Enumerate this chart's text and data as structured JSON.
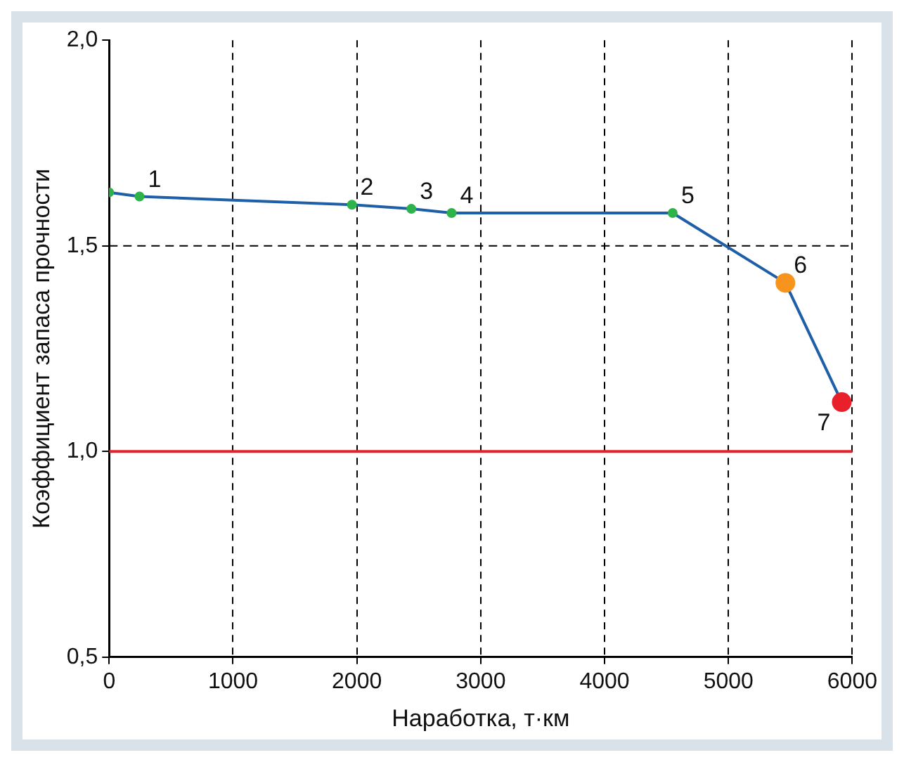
{
  "chart_data": {
    "type": "line",
    "xlabel": "Наработка, т·км",
    "ylabel": "Коэффициент запаса прочности",
    "x": [
      0,
      245,
      1960,
      2440,
      2765,
      4550,
      5460,
      5915
    ],
    "series": [
      {
        "color": "#1f5fa8",
        "values": [
          1.63,
          1.62,
          1.6,
          1.59,
          1.58,
          1.58,
          1.41,
          1.12
        ],
        "colors": [
          "#2db34a",
          "#2db34a",
          "#2db34a",
          "#2db34a",
          "#2db34a",
          "#2db34a",
          "#f7941d",
          "#e8202a"
        ]
      }
    ],
    "xlim": [
      0,
      6000
    ],
    "xticks": [
      0,
      1000,
      2000,
      3000,
      4000,
      5000,
      6000
    ],
    "ylim": [
      0.5,
      2
    ],
    "yticks": [
      {
        "value": 0.5,
        "label": "0,5"
      },
      {
        "value": 1,
        "label": "1,0"
      },
      {
        "value": 1.5,
        "label": "1,5"
      },
      {
        "value": 2,
        "label": "2,0"
      }
    ],
    "grid": "x",
    "marker": "circle",
    "line_style": "solid",
    "legend": false,
    "ref_lines": [
      {
        "axis": "y",
        "value": 1.5,
        "color": "#000000",
        "line_style": "dashed"
      },
      {
        "axis": "y",
        "value": 1,
        "color": "#e8202a",
        "line_style": "solid"
      }
    ],
    "annotations": [
      {
        "text": "1",
        "x": 245,
        "y": 1.62
      },
      {
        "text": "2",
        "x": 1960,
        "y": 1.6
      },
      {
        "text": "3",
        "x": 2440,
        "y": 1.59
      },
      {
        "text": "4",
        "x": 2765,
        "y": 1.58
      },
      {
        "text": "5",
        "x": 4550,
        "y": 1.58
      },
      {
        "text": "6",
        "x": 5460,
        "y": 1.41
      },
      {
        "text": "7",
        "x": 5915,
        "y": 1.12
      }
    ]
  }
}
